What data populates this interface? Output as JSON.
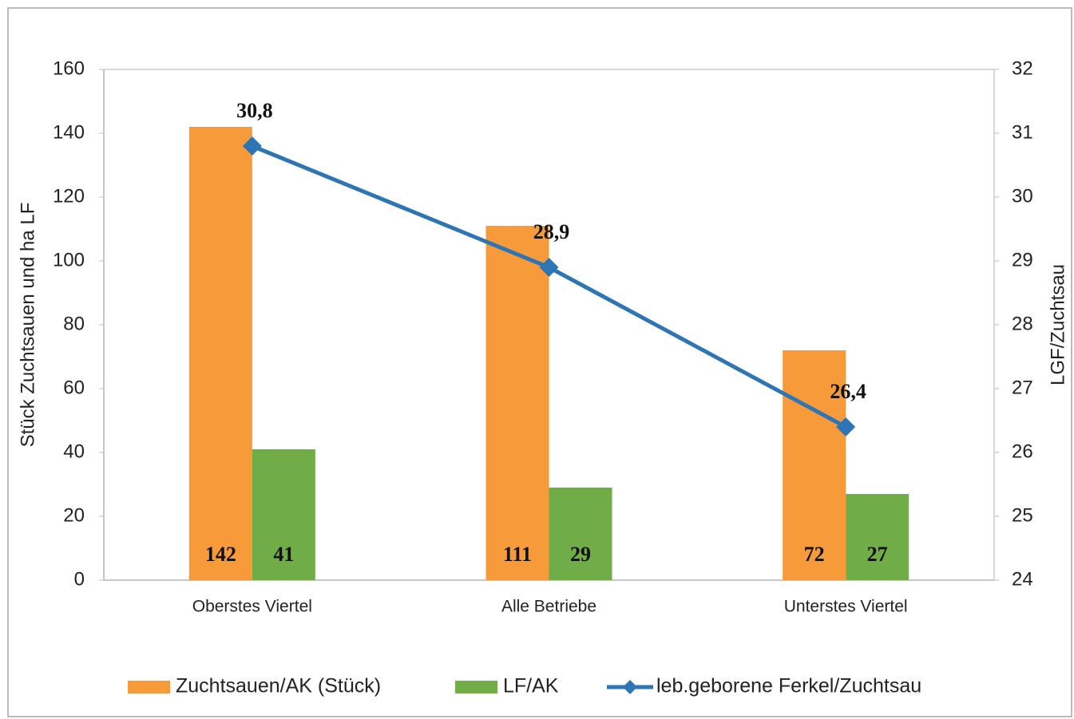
{
  "chart_data": {
    "type": "bar",
    "categories": [
      "Oberstes Viertel",
      "Alle Betriebe",
      "Unterstes Viertel"
    ],
    "series": [
      {
        "name": "Zuchtsauen/AK (Stück)",
        "color": "#f79a3a",
        "values": [
          142,
          111,
          72
        ]
      },
      {
        "name": "LF/AK",
        "color": "#70ad47",
        "values": [
          41,
          29,
          27
        ]
      },
      {
        "name": "leb.geborene Ferkel/Zuchtsau",
        "color": "#2e75b6",
        "axis": "y2",
        "type": "line",
        "values": [
          30.8,
          28.9,
          26.4
        ],
        "value_labels": [
          "30,8",
          "28,9",
          "26,4"
        ]
      }
    ],
    "ylabel": "Stück  Zuchtsauen und ha LF",
    "y2label": "LGF/Zuchtsau",
    "ylim": [
      0,
      160
    ],
    "yticks": [
      0,
      20,
      40,
      60,
      80,
      100,
      120,
      140,
      160
    ],
    "y2lim": [
      24,
      32
    ],
    "y2ticks": [
      24,
      25,
      26,
      27,
      28,
      29,
      30,
      31,
      32
    ],
    "legend": "bottom",
    "grid": false
  }
}
